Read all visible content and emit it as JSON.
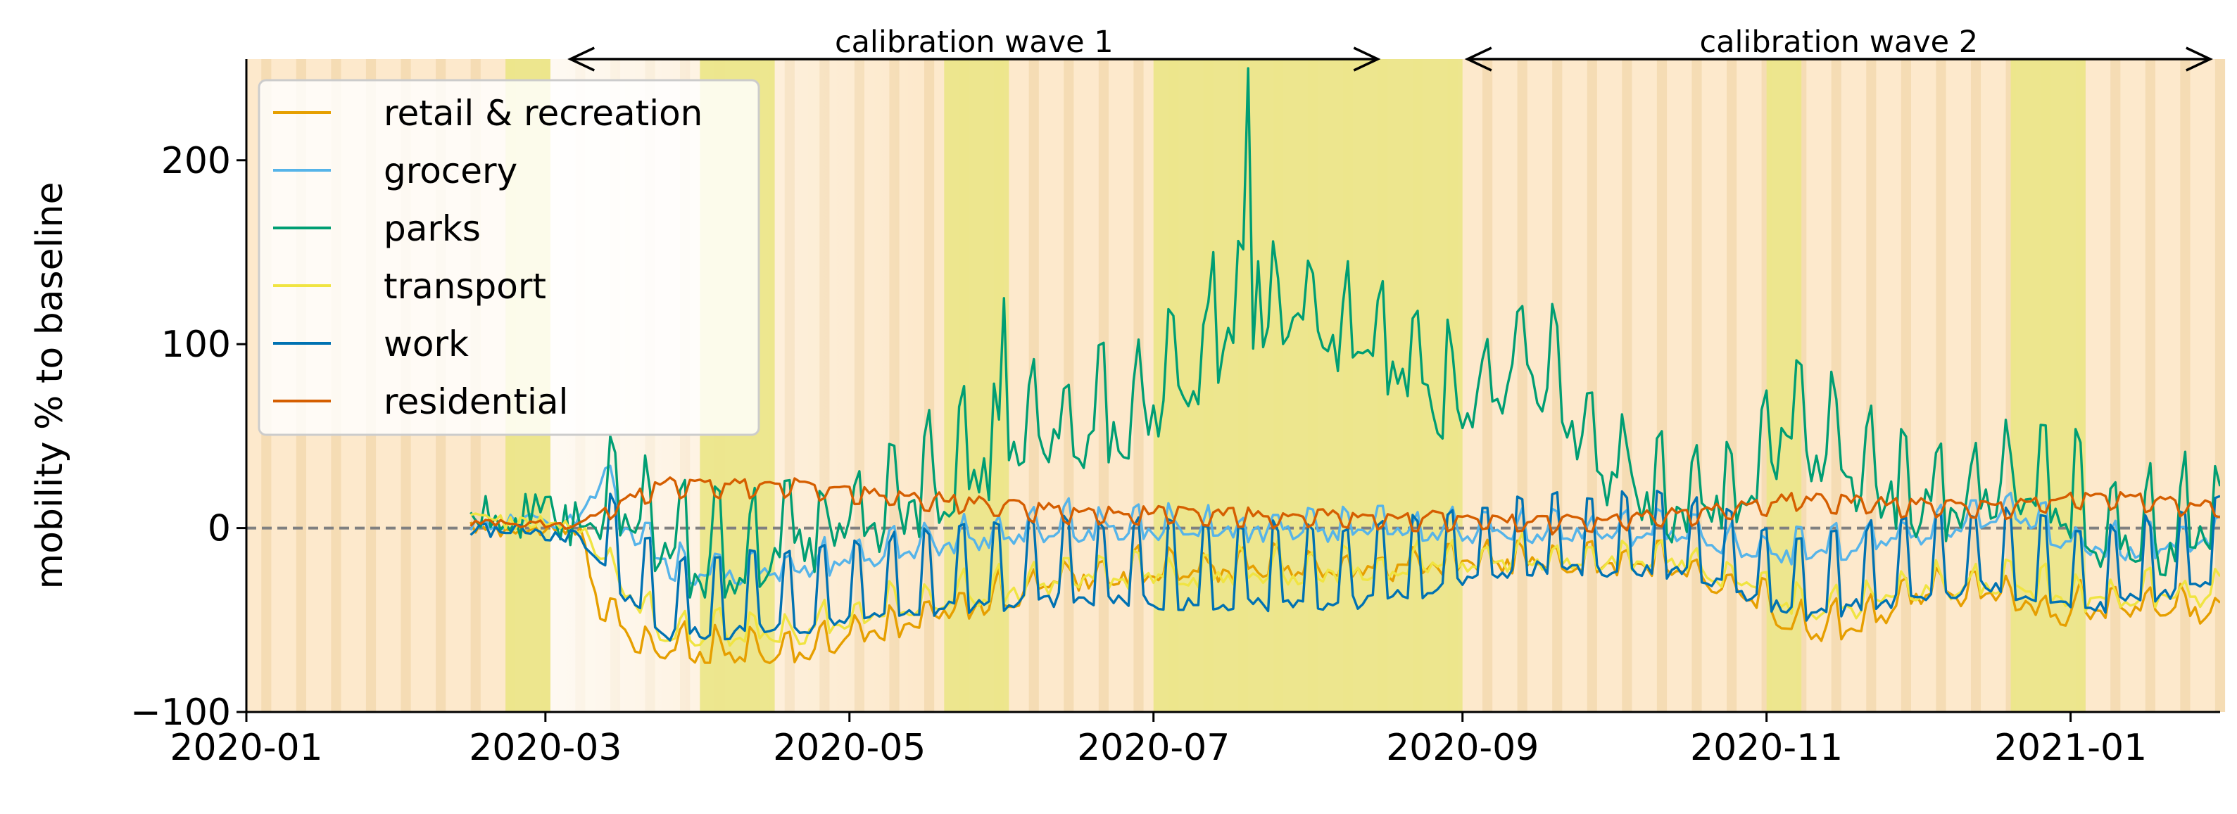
{
  "chart_data": {
    "type": "line",
    "title": "",
    "xlabel": "",
    "ylabel": "mobility % to baseline",
    "xlim": [
      "2020-01-01",
      "2021-01-31"
    ],
    "ylim": [
      -100,
      255
    ],
    "yticks": [
      -100,
      0,
      100,
      200
    ],
    "xticks": [
      "2020-01",
      "2020-03",
      "2020-05",
      "2020-07",
      "2020-09",
      "2020-11",
      "2021-01"
    ],
    "baseline": 0,
    "legend_position": "top-left",
    "grid": false,
    "series_start": "2020-02-15",
    "annotations": [
      {
        "text": "calibration wave 1",
        "start": "2020-03-06",
        "end": "2020-08-15"
      },
      {
        "text": "calibration wave 2",
        "start": "2020-09-02",
        "end": "2021-01-29"
      }
    ],
    "shaded_periods": [
      {
        "start": "2020-02-22",
        "end": "2020-03-02",
        "color": "#ece68a"
      },
      {
        "start": "2020-04-01",
        "end": "2020-04-16",
        "color": "#ece68a"
      },
      {
        "start": "2020-05-20",
        "end": "2020-06-02",
        "color": "#ece68a"
      },
      {
        "start": "2020-07-01",
        "end": "2020-09-01",
        "color": "#ece68a"
      },
      {
        "start": "2020-11-01",
        "end": "2020-11-08",
        "color": "#ece68a"
      },
      {
        "start": "2020-12-20",
        "end": "2021-01-04",
        "color": "#ece68a"
      }
    ],
    "background_color": "#fde9cc",
    "weekend_stripe_color": "#f5dcb4",
    "series": [
      {
        "name": "retail & recreation",
        "color": "#e69f00",
        "pattern": "weekly_low",
        "knots": [
          [
            "2020-02-15",
            0
          ],
          [
            "2020-03-08",
            -2
          ],
          [
            "2020-03-12",
            -45
          ],
          [
            "2020-03-20",
            -68
          ],
          [
            "2020-04-20",
            -70
          ],
          [
            "2020-05-15",
            -52
          ],
          [
            "2020-06-15",
            -30
          ],
          [
            "2020-07-15",
            -25
          ],
          [
            "2020-08-15",
            -25
          ],
          [
            "2020-09-15",
            -20
          ],
          [
            "2020-10-10",
            -22
          ],
          [
            "2020-10-25",
            -35
          ],
          [
            "2020-11-08",
            -58
          ],
          [
            "2020-11-20",
            -55
          ],
          [
            "2020-12-01",
            -38
          ],
          [
            "2020-12-18",
            -38
          ],
          [
            "2020-12-28",
            -50
          ],
          [
            "2021-01-10",
            -45
          ],
          [
            "2021-01-31",
            -48
          ]
        ]
      },
      {
        "name": "grocery",
        "color": "#56b4e9",
        "pattern": "weekly_low",
        "knots": [
          [
            "2020-02-15",
            2
          ],
          [
            "2020-03-08",
            5
          ],
          [
            "2020-03-13",
            30
          ],
          [
            "2020-03-16",
            0
          ],
          [
            "2020-03-28",
            -28
          ],
          [
            "2020-04-20",
            -25
          ],
          [
            "2020-05-15",
            -12
          ],
          [
            "2020-06-15",
            -3
          ],
          [
            "2020-09-15",
            -4
          ],
          [
            "2020-10-15",
            -6
          ],
          [
            "2020-11-08",
            -18
          ],
          [
            "2020-12-01",
            -5
          ],
          [
            "2020-12-20",
            5
          ],
          [
            "2020-12-30",
            -8
          ],
          [
            "2021-01-10",
            -15
          ],
          [
            "2021-01-31",
            -8
          ]
        ]
      },
      {
        "name": "parks",
        "color": "#009e73",
        "pattern": "parks",
        "knots": [
          [
            "2020-02-15",
            10
          ],
          [
            "2020-03-05",
            2
          ],
          [
            "2020-03-20",
            -5
          ],
          [
            "2020-04-01",
            -30
          ],
          [
            "2020-04-20",
            -15
          ],
          [
            "2020-05-10",
            0
          ],
          [
            "2020-05-25",
            25
          ],
          [
            "2020-06-10",
            40
          ],
          [
            "2020-06-25",
            50
          ],
          [
            "2020-07-10",
            75
          ],
          [
            "2020-07-20",
            110
          ],
          [
            "2020-07-28",
            110
          ],
          [
            "2020-08-05",
            95
          ],
          [
            "2020-08-20",
            75
          ],
          [
            "2020-09-01",
            55
          ],
          [
            "2020-09-15",
            85
          ],
          [
            "2020-09-28",
            30
          ],
          [
            "2020-10-10",
            5
          ],
          [
            "2020-10-25",
            5
          ],
          [
            "2020-11-05",
            45
          ],
          [
            "2020-11-20",
            20
          ],
          [
            "2020-12-05",
            5
          ],
          [
            "2020-12-25",
            15
          ],
          [
            "2021-01-10",
            -15
          ],
          [
            "2021-01-31",
            -10
          ]
        ]
      },
      {
        "name": "transport",
        "color": "#f0e442",
        "pattern": "weekly_low",
        "knots": [
          [
            "2020-02-15",
            5
          ],
          [
            "2020-03-08",
            2
          ],
          [
            "2020-03-15",
            -30
          ],
          [
            "2020-03-25",
            -60
          ],
          [
            "2020-04-20",
            -60
          ],
          [
            "2020-05-15",
            -45
          ],
          [
            "2020-06-15",
            -30
          ],
          [
            "2020-08-15",
            -25
          ],
          [
            "2020-09-15",
            -18
          ],
          [
            "2020-10-15",
            -20
          ],
          [
            "2020-11-08",
            -45
          ],
          [
            "2020-11-20",
            -45
          ],
          [
            "2020-12-01",
            -35
          ],
          [
            "2020-12-20",
            -33
          ],
          [
            "2021-01-05",
            -42
          ],
          [
            "2021-01-31",
            -38
          ]
        ]
      },
      {
        "name": "work",
        "color": "#0072b2",
        "pattern": "work",
        "knots": [
          [
            "2020-02-15",
            0
          ],
          [
            "2020-03-08",
            -5
          ],
          [
            "2020-03-15",
            -30
          ],
          [
            "2020-03-25",
            -58
          ],
          [
            "2020-04-20",
            -55
          ],
          [
            "2020-05-15",
            -45
          ],
          [
            "2020-06-15",
            -38
          ],
          [
            "2020-07-15",
            -42
          ],
          [
            "2020-08-15",
            -40
          ],
          [
            "2020-09-15",
            -22
          ],
          [
            "2020-10-15",
            -24
          ],
          [
            "2020-11-08",
            -48
          ],
          [
            "2020-11-20",
            -42
          ],
          [
            "2020-12-15",
            -32
          ],
          [
            "2021-01-05",
            -45
          ],
          [
            "2021-01-31",
            -28
          ]
        ]
      },
      {
        "name": "residential",
        "color": "#d55e00",
        "pattern": "weekly_high",
        "knots": [
          [
            "2020-02-15",
            2
          ],
          [
            "2020-03-08",
            2
          ],
          [
            "2020-03-15",
            15
          ],
          [
            "2020-03-25",
            25
          ],
          [
            "2020-04-20",
            25
          ],
          [
            "2020-05-15",
            18
          ],
          [
            "2020-06-15",
            10
          ],
          [
            "2020-08-15",
            8
          ],
          [
            "2020-09-15",
            5
          ],
          [
            "2020-10-15",
            9
          ],
          [
            "2020-11-08",
            18
          ],
          [
            "2020-11-20",
            15
          ],
          [
            "2020-12-20",
            13
          ],
          [
            "2021-01-05",
            20
          ],
          [
            "2021-01-31",
            13
          ]
        ]
      }
    ]
  }
}
